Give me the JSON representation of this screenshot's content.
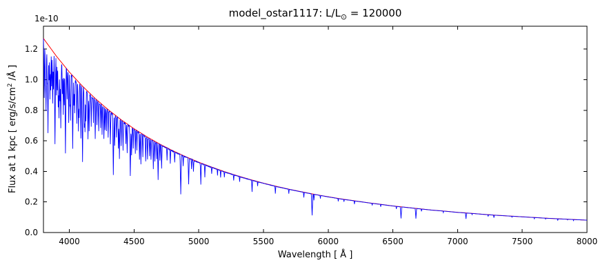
{
  "figure": {
    "title_prefix": "model_ostar1117: L/L",
    "title_sun": "⊙",
    "title_suffix": " = 120000",
    "offset_text": "1e-10",
    "xlabel": "Wavelength [ Å ]",
    "ylabel_prefix": "Flux at 1 kpc [ erg/s/cm",
    "ylabel_sup": "2",
    "ylabel_suffix": " /Å ]"
  },
  "chart_data": {
    "type": "line",
    "title": "model_ostar1117: L/L⊙ = 120000",
    "xlabel": "Wavelength [ Å ]",
    "ylabel": "Flux at 1 kpc [ erg/s/cm^2 /Å ]",
    "y_scale_offset": "1e-10",
    "xlim": [
      3800,
      8000
    ],
    "ylim": [
      0,
      1.35
    ],
    "xticks": [
      4000,
      4500,
      5000,
      5500,
      6000,
      6500,
      7000,
      7500,
      8000
    ],
    "yticks": [
      0.0,
      0.2,
      0.4,
      0.6,
      0.8,
      1.0,
      1.2
    ],
    "grid": false,
    "legend_position": "none",
    "series": [
      {
        "name": "model continuum",
        "color": "#ff0000",
        "x": [
          3800,
          3900,
          4000,
          4100,
          4200,
          4300,
          4400,
          4500,
          4600,
          4700,
          4800,
          4900,
          5000,
          5100,
          5200,
          5300,
          5400,
          5500,
          5600,
          5700,
          5800,
          5900,
          6000,
          6100,
          6200,
          6300,
          6400,
          6500,
          6600,
          6700,
          6800,
          6900,
          7000,
          7100,
          7200,
          7300,
          7400,
          7500,
          7600,
          7700,
          7800,
          7900,
          8000
        ],
        "y": [
          1.27,
          1.154,
          1.05,
          0.959,
          0.877,
          0.804,
          0.738,
          0.679,
          0.626,
          0.578,
          0.535,
          0.496,
          0.46,
          0.428,
          0.398,
          0.371,
          0.346,
          0.323,
          0.302,
          0.283,
          0.266,
          0.249,
          0.234,
          0.22,
          0.208,
          0.196,
          0.185,
          0.174,
          0.165,
          0.156,
          0.147,
          0.14,
          0.132,
          0.126,
          0.119,
          0.113,
          0.108,
          0.103,
          0.098,
          0.093,
          0.089,
          0.085,
          0.081
        ]
      },
      {
        "name": "synthetic spectrum",
        "color": "#0000ff",
        "follows": "model continuum",
        "absorption_lines": [
          [
            3806,
            0.3
          ],
          [
            3815,
            0.22
          ],
          [
            3820,
            0.35
          ],
          [
            3829,
            0.2
          ],
          [
            3835,
            0.45
          ],
          [
            3843,
            0.18
          ],
          [
            3850,
            0.28
          ],
          [
            3856,
            0.22
          ],
          [
            3863,
            0.18
          ],
          [
            3871,
            0.28
          ],
          [
            3878,
            0.2
          ],
          [
            3889,
            0.5
          ],
          [
            3900,
            0.22
          ],
          [
            3907,
            0.18
          ],
          [
            3914,
            0.28
          ],
          [
            3920,
            0.32
          ],
          [
            3927,
            0.22
          ],
          [
            3934,
            0.38
          ],
          [
            3946,
            0.18
          ],
          [
            3953,
            0.28
          ],
          [
            3961,
            0.22
          ],
          [
            3970,
            0.5
          ],
          [
            3983,
            0.18
          ],
          [
            3995,
            0.32
          ],
          [
            4004,
            0.2
          ],
          [
            4009,
            0.28
          ],
          [
            4026,
            0.45
          ],
          [
            4035,
            0.18
          ],
          [
            4041,
            0.22
          ],
          [
            4058,
            0.28
          ],
          [
            4070,
            0.32
          ],
          [
            4076,
            0.22
          ],
          [
            4089,
            0.35
          ],
          [
            4102,
            0.5
          ],
          [
            4116,
            0.26
          ],
          [
            4121,
            0.3
          ],
          [
            4128,
            0.22
          ],
          [
            4144,
            0.32
          ],
          [
            4153,
            0.26
          ],
          [
            4169,
            0.22
          ],
          [
            4186,
            0.18
          ],
          [
            4200,
            0.3
          ],
          [
            4213,
            0.18
          ],
          [
            4227,
            0.22
          ],
          [
            4242,
            0.18
          ],
          [
            4253,
            0.22
          ],
          [
            4267,
            0.26
          ],
          [
            4276,
            0.18
          ],
          [
            4287,
            0.18
          ],
          [
            4300,
            0.22
          ],
          [
            4317,
            0.26
          ],
          [
            4340,
            0.5
          ],
          [
            4350,
            0.26
          ],
          [
            4364,
            0.18
          ],
          [
            4379,
            0.26
          ],
          [
            4387,
            0.34
          ],
          [
            4400,
            0.22
          ],
          [
            4415,
            0.26
          ],
          [
            4437,
            0.18
          ],
          [
            4447,
            0.26
          ],
          [
            4471,
            0.46
          ],
          [
            4481,
            0.26
          ],
          [
            4494,
            0.18
          ],
          [
            4510,
            0.22
          ],
          [
            4522,
            0.18
          ],
          [
            4542,
            0.26
          ],
          [
            4553,
            0.3
          ],
          [
            4568,
            0.22
          ],
          [
            4590,
            0.26
          ],
          [
            4604,
            0.22
          ],
          [
            4620,
            0.18
          ],
          [
            4631,
            0.22
          ],
          [
            4649,
            0.3
          ],
          [
            4661,
            0.22
          ],
          [
            4676,
            0.18
          ],
          [
            4686,
            0.4
          ],
          [
            4700,
            0.18
          ],
          [
            4713,
            0.26
          ],
          [
            4755,
            0.14
          ],
          [
            4780,
            0.16
          ],
          [
            4814,
            0.13
          ],
          [
            4861,
            0.5
          ],
          [
            4880,
            0.13
          ],
          [
            4922,
            0.35
          ],
          [
            4944,
            0.13
          ],
          [
            4959,
            0.16
          ],
          [
            5016,
            0.3
          ],
          [
            5047,
            0.18
          ],
          [
            5100,
            0.1
          ],
          [
            5145,
            0.09
          ],
          [
            5169,
            0.11
          ],
          [
            5198,
            0.09
          ],
          [
            5270,
            0.1
          ],
          [
            5316,
            0.09
          ],
          [
            5412,
            0.22
          ],
          [
            5455,
            0.08
          ],
          [
            5592,
            0.16
          ],
          [
            5696,
            0.1
          ],
          [
            5812,
            0.13
          ],
          [
            5876,
            0.55
          ],
          [
            5890,
            0.16
          ],
          [
            5940,
            0.08
          ],
          [
            6078,
            0.08
          ],
          [
            6122,
            0.07
          ],
          [
            6203,
            0.1
          ],
          [
            6340,
            0.07
          ],
          [
            6406,
            0.08
          ],
          [
            6527,
            0.1
          ],
          [
            6563,
            0.45
          ],
          [
            6678,
            0.42
          ],
          [
            6721,
            0.1
          ],
          [
            6890,
            0.07
          ],
          [
            7065,
            0.3
          ],
          [
            7112,
            0.06
          ],
          [
            7236,
            0.1
          ],
          [
            7281,
            0.15
          ],
          [
            7420,
            0.06
          ],
          [
            7593,
            0.08
          ],
          [
            7680,
            0.06
          ],
          [
            7774,
            0.13
          ],
          [
            7850,
            0.05
          ],
          [
            7896,
            0.08
          ]
        ]
      }
    ]
  }
}
